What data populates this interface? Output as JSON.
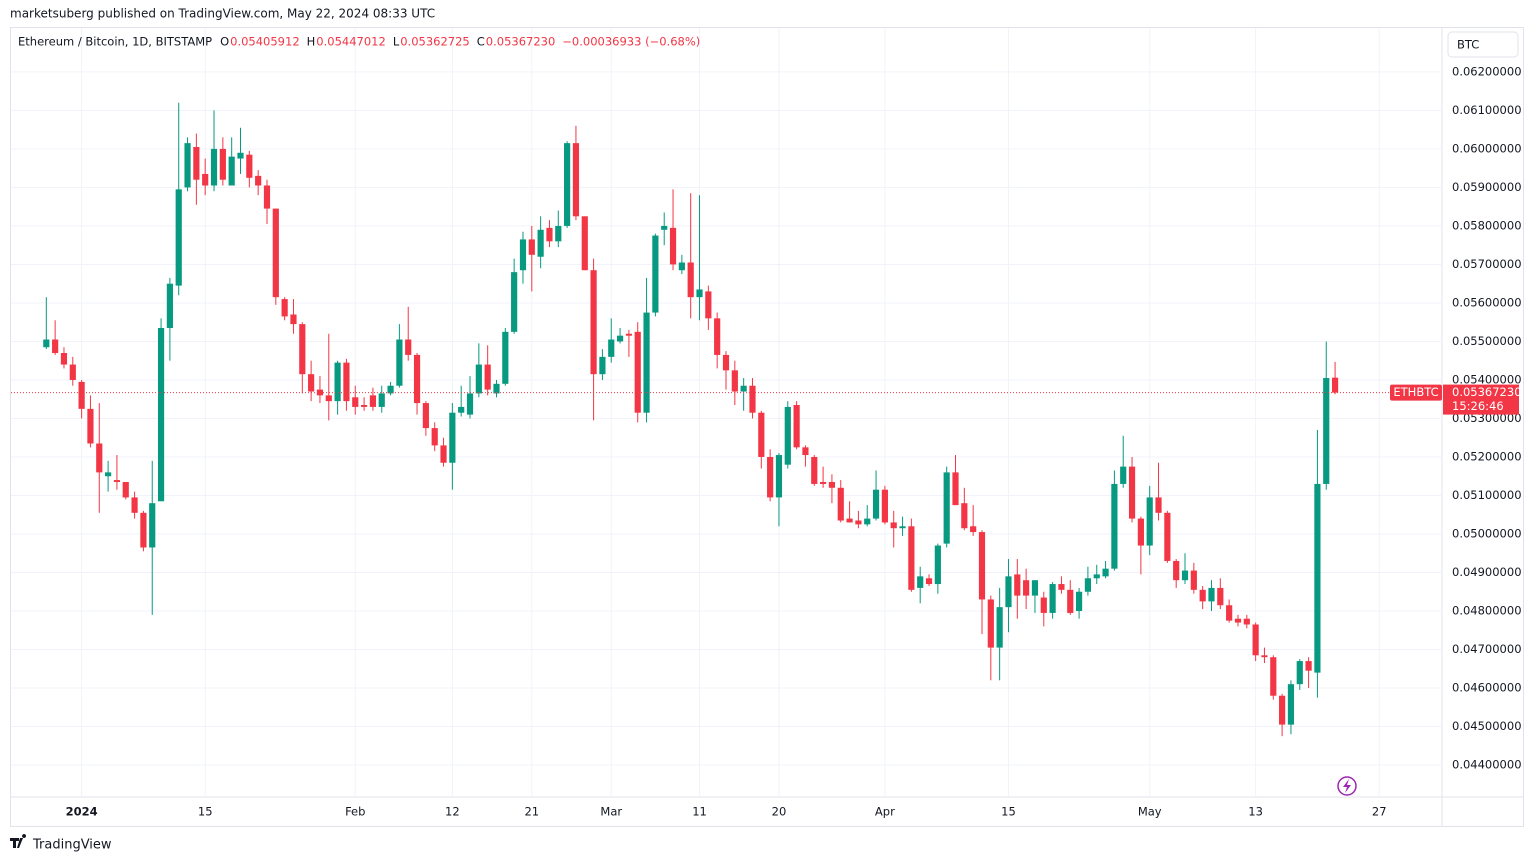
{
  "header": {
    "publisher": "marketsuberg published on TradingView.com, May 22, 2024 08:33 UTC",
    "brand": "TradingView"
  },
  "chart_data": {
    "type": "candlestick",
    "title": "Ethereum / Bitcoin, 1D, BITSTAMP",
    "legend_labels": [
      "O",
      "H",
      "L",
      "C"
    ],
    "last_close_label": "0.05367230",
    "change": "−0.00036933 (−0.68%)",
    "currency": "BTC",
    "symbol": "ETHBTC",
    "countdown": "15:26:46",
    "colors": {
      "up": "#089981",
      "down": "#f23645"
    },
    "grid": true,
    "x": [
      "2023-12-28",
      "2023-12-29",
      "2023-12-30",
      "2023-12-31",
      "2024-01-01",
      "2024-01-02",
      "2024-01-03",
      "2024-01-04",
      "2024-01-05",
      "2024-01-06",
      "2024-01-07",
      "2024-01-08",
      "2024-01-09",
      "2024-01-10",
      "2024-01-11",
      "2024-01-12",
      "2024-01-13",
      "2024-01-14",
      "2024-01-15",
      "2024-01-16",
      "2024-01-17",
      "2024-01-18",
      "2024-01-19",
      "2024-01-20",
      "2024-01-21",
      "2024-01-22",
      "2024-01-23",
      "2024-01-24",
      "2024-01-25",
      "2024-01-26",
      "2024-01-27",
      "2024-01-28",
      "2024-01-29",
      "2024-01-30",
      "2024-01-31",
      "2024-02-01",
      "2024-02-02",
      "2024-02-03",
      "2024-02-04",
      "2024-02-05",
      "2024-02-06",
      "2024-02-07",
      "2024-02-08",
      "2024-02-09",
      "2024-02-10",
      "2024-02-11",
      "2024-02-12",
      "2024-02-13",
      "2024-02-14",
      "2024-02-15",
      "2024-02-16",
      "2024-02-17",
      "2024-02-18",
      "2024-02-19",
      "2024-02-20",
      "2024-02-21",
      "2024-02-22",
      "2024-02-23",
      "2024-02-24",
      "2024-02-25",
      "2024-02-26",
      "2024-02-27",
      "2024-02-28",
      "2024-02-29",
      "2024-03-01",
      "2024-03-02",
      "2024-03-03",
      "2024-03-04",
      "2024-03-05",
      "2024-03-06",
      "2024-03-07",
      "2024-03-08",
      "2024-03-09",
      "2024-03-10",
      "2024-03-11",
      "2024-03-12",
      "2024-03-13",
      "2024-03-14",
      "2024-03-15",
      "2024-03-16",
      "2024-03-17",
      "2024-03-18",
      "2024-03-19",
      "2024-03-20",
      "2024-03-21",
      "2024-03-22",
      "2024-03-23",
      "2024-03-24",
      "2024-03-25",
      "2024-03-26",
      "2024-03-27",
      "2024-03-28",
      "2024-03-29",
      "2024-03-30",
      "2024-03-31",
      "2024-04-01",
      "2024-04-02",
      "2024-04-03",
      "2024-04-04",
      "2024-04-05",
      "2024-04-06",
      "2024-04-07",
      "2024-04-08",
      "2024-04-09",
      "2024-04-10",
      "2024-04-11",
      "2024-04-12",
      "2024-04-13",
      "2024-04-14",
      "2024-04-15",
      "2024-04-16",
      "2024-04-17",
      "2024-04-18",
      "2024-04-19",
      "2024-04-20",
      "2024-04-21",
      "2024-04-22",
      "2024-04-23",
      "2024-04-24",
      "2024-04-25",
      "2024-04-26",
      "2024-04-27",
      "2024-04-28",
      "2024-04-29",
      "2024-04-30",
      "2024-05-01",
      "2024-05-02",
      "2024-05-03",
      "2024-05-04",
      "2024-05-05",
      "2024-05-06",
      "2024-05-07",
      "2024-05-08",
      "2024-05-09",
      "2024-05-10",
      "2024-05-11",
      "2024-05-12",
      "2024-05-13",
      "2024-05-14",
      "2024-05-15",
      "2024-05-16",
      "2024-05-17",
      "2024-05-18",
      "2024-05-19",
      "2024-05-20",
      "2024-05-21",
      "2024-05-22"
    ],
    "open": [
      0.05485,
      0.05505,
      0.0547,
      0.0544,
      0.05395,
      0.05325,
      0.05235,
      0.0515,
      0.0514,
      0.05135,
      0.05095,
      0.05055,
      0.04965,
      0.05085,
      0.05535,
      0.05645,
      0.059,
      0.06005,
      0.05935,
      0.05905,
      0.06,
      0.05905,
      0.05975,
      0.05985,
      0.0593,
      0.05905,
      0.05845,
      0.0561,
      0.0557,
      0.05545,
      0.05415,
      0.05375,
      0.0536,
      0.05345,
      0.05445,
      0.05355,
      0.05335,
      0.0536,
      0.0533,
      0.05365,
      0.05385,
      0.05505,
      0.05465,
      0.0534,
      0.05275,
      0.0523,
      0.05185,
      0.05315,
      0.0531,
      0.05365,
      0.0544,
      0.05365,
      0.0539,
      0.05525,
      0.05685,
      0.05765,
      0.0572,
      0.05795,
      0.0576,
      0.058,
      0.06015,
      0.05825,
      0.05685,
      0.05415,
      0.0546,
      0.055,
      0.0552,
      0.05525,
      0.05315,
      0.05575,
      0.0579,
      0.05795,
      0.05685,
      0.05705,
      0.05615,
      0.0563,
      0.0556,
      0.05465,
      0.05425,
      0.0537,
      0.05385,
      0.05315,
      0.052,
      0.05095,
      0.0518,
      0.05335,
      0.05225,
      0.052,
      0.05135,
      0.05135,
      0.0512,
      0.0504,
      0.05035,
      0.05025,
      0.0504,
      0.05115,
      0.0503,
      0.05015,
      0.0502,
      0.0486,
      0.04885,
      0.0487,
      0.04975,
      0.0516,
      0.0508,
      0.0502,
      0.05005,
      0.0483,
      0.04705,
      0.0481,
      0.04895,
      0.0488,
      0.0484,
      0.04835,
      0.04795,
      0.0487,
      0.04855,
      0.048,
      0.0485,
      0.04885,
      0.0489,
      0.0491,
      0.0513,
      0.05175,
      0.0504,
      0.0497,
      0.05095,
      0.05055,
      0.0493,
      0.0488,
      0.04905,
      0.04855,
      0.04825,
      0.0486,
      0.04815,
      0.0478,
      0.0478,
      0.04765,
      0.04685,
      0.0468,
      0.0458,
      0.04505,
      0.0461,
      0.0467,
      0.0464,
      0.0513,
      0.05405912
    ],
    "high": [
      0.05615,
      0.05555,
      0.05485,
      0.0546,
      0.054,
      0.0536,
      0.0534,
      0.0519,
      0.05205,
      0.05135,
      0.0511,
      0.0506,
      0.0519,
      0.0556,
      0.05665,
      0.0612,
      0.0603,
      0.0604,
      0.05975,
      0.061,
      0.0603,
      0.0603,
      0.06055,
      0.05995,
      0.05945,
      0.0592,
      0.05845,
      0.05615,
      0.0561,
      0.0555,
      0.0545,
      0.0541,
      0.0552,
      0.0545,
      0.05455,
      0.05385,
      0.05355,
      0.0538,
      0.05385,
      0.05395,
      0.05545,
      0.0559,
      0.0547,
      0.05345,
      0.0529,
      0.0525,
      0.0534,
      0.05385,
      0.0541,
      0.05495,
      0.0549,
      0.054,
      0.05535,
      0.05715,
      0.05785,
      0.058,
      0.05825,
      0.05815,
      0.0584,
      0.0602,
      0.0606,
      0.05825,
      0.05715,
      0.0548,
      0.0556,
      0.05535,
      0.0553,
      0.0555,
      0.05665,
      0.0578,
      0.05835,
      0.05895,
      0.05725,
      0.05885,
      0.0588,
      0.05645,
      0.05575,
      0.05475,
      0.0545,
      0.05405,
      0.05405,
      0.0532,
      0.0522,
      0.0521,
      0.05345,
      0.05345,
      0.0523,
      0.05205,
      0.05175,
      0.05155,
      0.0514,
      0.05085,
      0.0506,
      0.05075,
      0.05165,
      0.05125,
      0.0506,
      0.05045,
      0.0504,
      0.04915,
      0.04895,
      0.04975,
      0.05175,
      0.05205,
      0.0512,
      0.05075,
      0.0501,
      0.0484,
      0.0486,
      0.04935,
      0.04935,
      0.0491,
      0.0488,
      0.0485,
      0.04875,
      0.0489,
      0.0488,
      0.0486,
      0.04915,
      0.0492,
      0.0493,
      0.05165,
      0.05255,
      0.052,
      0.05045,
      0.05125,
      0.05185,
      0.0506,
      0.04935,
      0.0495,
      0.04925,
      0.04865,
      0.0488,
      0.04885,
      0.0483,
      0.0479,
      0.0479,
      0.0477,
      0.04705,
      0.04685,
      0.04585,
      0.0462,
      0.04675,
      0.0468,
      0.0527,
      0.055,
      0.05447012
    ],
    "low": [
      0.0548,
      0.05465,
      0.0543,
      0.05385,
      0.053,
      0.05225,
      0.05055,
      0.0511,
      0.05115,
      0.0509,
      0.0504,
      0.04955,
      0.0479,
      0.05085,
      0.0545,
      0.0562,
      0.0589,
      0.05855,
      0.0588,
      0.0589,
      0.05905,
      0.05905,
      0.05935,
      0.059,
      0.0588,
      0.05805,
      0.05595,
      0.05555,
      0.0552,
      0.05365,
      0.05345,
      0.0534,
      0.05295,
      0.0531,
      0.0532,
      0.0531,
      0.0532,
      0.0532,
      0.05315,
      0.0536,
      0.0538,
      0.0545,
      0.0531,
      0.05255,
      0.05215,
      0.05175,
      0.05115,
      0.05305,
      0.053,
      0.05355,
      0.0536,
      0.05355,
      0.05385,
      0.0552,
      0.0565,
      0.0563,
      0.0569,
      0.05745,
      0.05745,
      0.05795,
      0.05815,
      0.05685,
      0.05295,
      0.054,
      0.05445,
      0.05495,
      0.0546,
      0.0529,
      0.0529,
      0.05565,
      0.0575,
      0.05685,
      0.05675,
      0.0556,
      0.05555,
      0.0553,
      0.0543,
      0.05375,
      0.05335,
      0.0532,
      0.053,
      0.0517,
      0.05085,
      0.0502,
      0.0517,
      0.0522,
      0.05175,
      0.05125,
      0.0512,
      0.0508,
      0.0503,
      0.0503,
      0.05015,
      0.0502,
      0.05035,
      0.05025,
      0.04965,
      0.04995,
      0.0485,
      0.0482,
      0.04865,
      0.04845,
      0.04965,
      0.05075,
      0.0501,
      0.04995,
      0.0474,
      0.0462,
      0.0462,
      0.04745,
      0.0478,
      0.04805,
      0.04795,
      0.0476,
      0.0478,
      0.04845,
      0.0479,
      0.0478,
      0.0484,
      0.0487,
      0.04885,
      0.04905,
      0.0512,
      0.0503,
      0.04895,
      0.04945,
      0.05035,
      0.04925,
      0.0486,
      0.0487,
      0.04845,
      0.04805,
      0.048,
      0.04805,
      0.0477,
      0.0476,
      0.04755,
      0.0467,
      0.04665,
      0.0457,
      0.04475,
      0.0448,
      0.04595,
      0.046,
      0.04575,
      0.05115,
      0.05362725
    ],
    "close": [
      0.05505,
      0.0547,
      0.0544,
      0.054,
      0.05325,
      0.05235,
      0.0516,
      0.0516,
      0.05135,
      0.05095,
      0.05055,
      0.04965,
      0.0508,
      0.05535,
      0.0565,
      0.05895,
      0.06015,
      0.0592,
      0.05905,
      0.06,
      0.0592,
      0.0598,
      0.0599,
      0.05925,
      0.05905,
      0.05845,
      0.05615,
      0.05565,
      0.05545,
      0.05415,
      0.0537,
      0.0536,
      0.05345,
      0.05445,
      0.05345,
      0.0533,
      0.0533,
      0.0533,
      0.05365,
      0.05385,
      0.05505,
      0.05465,
      0.0534,
      0.05275,
      0.0523,
      0.05185,
      0.05315,
      0.0533,
      0.05365,
      0.0544,
      0.05375,
      0.0539,
      0.05525,
      0.0568,
      0.05765,
      0.05725,
      0.0579,
      0.0576,
      0.058,
      0.06015,
      0.05825,
      0.05685,
      0.05415,
      0.0546,
      0.05505,
      0.05515,
      0.05515,
      0.05315,
      0.05575,
      0.05775,
      0.058,
      0.057,
      0.05705,
      0.05615,
      0.05635,
      0.0556,
      0.05465,
      0.05425,
      0.0537,
      0.05385,
      0.05315,
      0.052,
      0.05095,
      0.05205,
      0.0533,
      0.05225,
      0.05205,
      0.0513,
      0.0513,
      0.0512,
      0.05035,
      0.0503,
      0.05025,
      0.0504,
      0.05115,
      0.0503,
      0.05015,
      0.0502,
      0.04855,
      0.0489,
      0.0487,
      0.0497,
      0.0516,
      0.05075,
      0.05015,
      0.05005,
      0.0483,
      0.04705,
      0.0481,
      0.0489,
      0.0484,
      0.0484,
      0.0488,
      0.04795,
      0.0487,
      0.04855,
      0.04795,
      0.0485,
      0.04885,
      0.04895,
      0.0491,
      0.0513,
      0.05175,
      0.0504,
      0.0497,
      0.05095,
      0.05055,
      0.0493,
      0.0488,
      0.04905,
      0.04855,
      0.04825,
      0.0486,
      0.04815,
      0.04775,
      0.0477,
      0.04765,
      0.04685,
      0.0468,
      0.0458,
      0.04505,
      0.0461,
      0.0467,
      0.04645,
      0.0513,
      0.05405,
      0.0536723
    ],
    "ylim": [
      0.04317,
      0.06314
    ],
    "yticks": [
      {
        "value": 0.062,
        "label": "0.06200000"
      },
      {
        "value": 0.061,
        "label": "0.06100000"
      },
      {
        "value": 0.06,
        "label": "0.06000000"
      },
      {
        "value": 0.059,
        "label": "0.05900000"
      },
      {
        "value": 0.058,
        "label": "0.05800000"
      },
      {
        "value": 0.057,
        "label": "0.05700000"
      },
      {
        "value": 0.056,
        "label": "0.05600000"
      },
      {
        "value": 0.055,
        "label": "0.05500000"
      },
      {
        "value": 0.054,
        "label": "0.05400000"
      },
      {
        "value": 0.053,
        "label": "0.05300000"
      },
      {
        "value": 0.052,
        "label": "0.05200000"
      },
      {
        "value": 0.051,
        "label": "0.05100000"
      },
      {
        "value": 0.05,
        "label": "0.05000000"
      },
      {
        "value": 0.049,
        "label": "0.04900000"
      },
      {
        "value": 0.048,
        "label": "0.04800000"
      },
      {
        "value": 0.047,
        "label": "0.04700000"
      },
      {
        "value": 0.046,
        "label": "0.04600000"
      },
      {
        "value": 0.045,
        "label": "0.04500000"
      },
      {
        "value": 0.044,
        "label": "0.04400000"
      }
    ],
    "xlim": [
      "2023-12-24",
      "2024-06-03"
    ],
    "xticks": [
      {
        "value": "2024-01-01",
        "label": "2024"
      },
      {
        "value": "2024-01-15",
        "label": "15"
      },
      {
        "value": "2024-02-01",
        "label": "Feb"
      },
      {
        "value": "2024-02-12",
        "label": "12"
      },
      {
        "value": "2024-02-21",
        "label": "21"
      },
      {
        "value": "2024-03-01",
        "label": "Mar"
      },
      {
        "value": "2024-03-11",
        "label": "11"
      },
      {
        "value": "2024-03-20",
        "label": "20"
      },
      {
        "value": "2024-04-01",
        "label": "Apr"
      },
      {
        "value": "2024-04-15",
        "label": "15"
      },
      {
        "value": "2024-05-01",
        "label": "May"
      },
      {
        "value": "2024-05-13",
        "label": "13"
      },
      {
        "value": "2024-05-27",
        "label": "27"
      }
    ]
  }
}
